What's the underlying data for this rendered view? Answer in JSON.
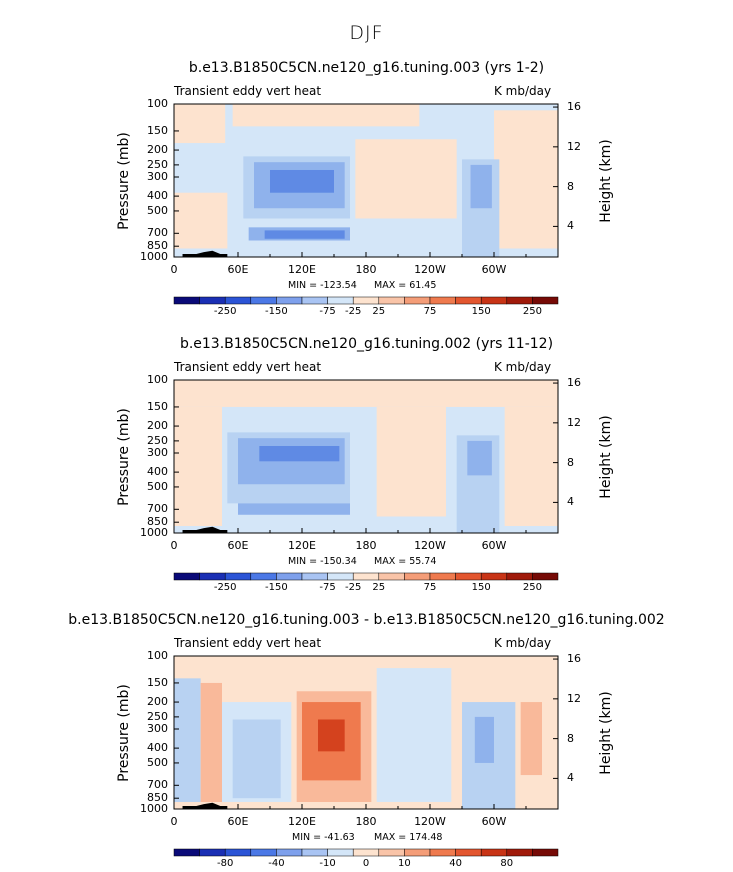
{
  "supertitle": "DJF",
  "colors": {
    "light_blue": "#d4e6f8",
    "mid_blue": "#b8d2f2",
    "blue": "#8fb2ec",
    "deep_blue": "#5f8ae4",
    "light_orange": "#fde3cf",
    "orange": "#f9b99a",
    "red_orange": "#ef7a4e",
    "deep_red": "#d4421e",
    "topo": "#000000"
  },
  "chart_data": [
    {
      "type": "heatmap",
      "title": "b.e13.B1850C5CN.ne120_g16.tuning.003 (yrs 1-2)",
      "left_string": "Transient eddy vert heat",
      "right_string": "K mb/day",
      "ylabel": "Pressure (mb)",
      "ylabel_right": "Height (km)",
      "xticks": [
        "0",
        "60E",
        "120E",
        "180",
        "120W",
        "60W"
      ],
      "yticks": [
        "100",
        "150",
        "200",
        "250",
        "300",
        "400",
        "500",
        "700",
        "850",
        "1000"
      ],
      "yticks_right": [
        "16",
        "12",
        "8",
        "4"
      ],
      "min_label": "MIN = -123.54",
      "max_label": "MAX =  61.45",
      "colorbar_labels": [
        "-250",
        "-150",
        "-75",
        "-25",
        "25",
        "75",
        "150",
        "250"
      ],
      "regions": [
        {
          "lon": [
            0,
            360
          ],
          "p": [
            100,
            1000
          ],
          "level": "light_blue"
        },
        {
          "lon": [
            0,
            48
          ],
          "p": [
            100,
            180
          ],
          "level": "light_orange"
        },
        {
          "lon": [
            55,
            230
          ],
          "p": [
            100,
            140
          ],
          "level": "light_orange"
        },
        {
          "lon": [
            170,
            265
          ],
          "p": [
            170,
            560
          ],
          "level": "light_orange"
        },
        {
          "lon": [
            300,
            360
          ],
          "p": [
            110,
            880
          ],
          "level": "light_orange"
        },
        {
          "lon": [
            0,
            50
          ],
          "p": [
            380,
            880
          ],
          "level": "light_orange"
        },
        {
          "lon": [
            65,
            165
          ],
          "p": [
            220,
            560
          ],
          "level": "mid_blue"
        },
        {
          "lon": [
            75,
            160
          ],
          "p": [
            240,
            480
          ],
          "level": "blue"
        },
        {
          "lon": [
            90,
            150
          ],
          "p": [
            270,
            380
          ],
          "level": "deep_blue"
        },
        {
          "lon": [
            70,
            165
          ],
          "p": [
            640,
            780
          ],
          "level": "blue"
        },
        {
          "lon": [
            85,
            160
          ],
          "p": [
            670,
            760
          ],
          "level": "deep_blue"
        },
        {
          "lon": [
            270,
            305
          ],
          "p": [
            230,
            1000
          ],
          "level": "mid_blue"
        },
        {
          "lon": [
            278,
            298
          ],
          "p": [
            250,
            480
          ],
          "level": "blue"
        }
      ]
    },
    {
      "type": "heatmap",
      "title": "b.e13.B1850C5CN.ne120_g16.tuning.002 (yrs 11-12)",
      "left_string": "Transient eddy vert heat",
      "right_string": "K mb/day",
      "ylabel": "Pressure (mb)",
      "ylabel_right": "Height (km)",
      "xticks": [
        "0",
        "60E",
        "120E",
        "180",
        "120W",
        "60W"
      ],
      "yticks": [
        "100",
        "150",
        "200",
        "250",
        "300",
        "400",
        "500",
        "700",
        "850",
        "1000"
      ],
      "yticks_right": [
        "16",
        "12",
        "8",
        "4"
      ],
      "min_label": "MIN = -150.34",
      "max_label": "MAX =  55.74",
      "colorbar_labels": [
        "-250",
        "-150",
        "-75",
        "-25",
        "25",
        "75",
        "150",
        "250"
      ],
      "regions": [
        {
          "lon": [
            0,
            360
          ],
          "p": [
            100,
            1000
          ],
          "level": "light_blue"
        },
        {
          "lon": [
            0,
            360
          ],
          "p": [
            100,
            150
          ],
          "level": "light_orange"
        },
        {
          "lon": [
            0,
            45
          ],
          "p": [
            150,
            900
          ],
          "level": "light_orange"
        },
        {
          "lon": [
            190,
            255
          ],
          "p": [
            150,
            780
          ],
          "level": "light_orange"
        },
        {
          "lon": [
            310,
            360
          ],
          "p": [
            150,
            900
          ],
          "level": "light_orange"
        },
        {
          "lon": [
            50,
            165
          ],
          "p": [
            220,
            640
          ],
          "level": "mid_blue"
        },
        {
          "lon": [
            60,
            160
          ],
          "p": [
            240,
            480
          ],
          "level": "blue"
        },
        {
          "lon": [
            80,
            155
          ],
          "p": [
            270,
            340
          ],
          "level": "deep_blue"
        },
        {
          "lon": [
            60,
            165
          ],
          "p": [
            640,
            760
          ],
          "level": "blue"
        },
        {
          "lon": [
            265,
            305
          ],
          "p": [
            230,
            1000
          ],
          "level": "mid_blue"
        },
        {
          "lon": [
            275,
            298
          ],
          "p": [
            250,
            420
          ],
          "level": "blue"
        }
      ]
    },
    {
      "type": "heatmap",
      "title": "b.e13.B1850C5CN.ne120_g16.tuning.003 - b.e13.B1850C5CN.ne120_g16.tuning.002",
      "left_string": "Transient eddy vert heat",
      "right_string": "K mb/day",
      "ylabel": "Pressure (mb)",
      "ylabel_right": "Height (km)",
      "xticks": [
        "0",
        "60E",
        "120E",
        "180",
        "120W",
        "60W"
      ],
      "yticks": [
        "100",
        "150",
        "200",
        "250",
        "300",
        "400",
        "500",
        "700",
        "850",
        "1000"
      ],
      "yticks_right": [
        "16",
        "12",
        "8",
        "4"
      ],
      "min_label": "MIN = -41.63",
      "max_label": "MAX = 174.48",
      "colorbar_labels": [
        "-80",
        "-40",
        "-10",
        "0",
        "10",
        "40",
        "80"
      ],
      "regions": [
        {
          "lon": [
            0,
            360
          ],
          "p": [
            100,
            1000
          ],
          "level": "light_orange"
        },
        {
          "lon": [
            0,
            25
          ],
          "p": [
            140,
            900
          ],
          "level": "mid_blue"
        },
        {
          "lon": [
            25,
            45
          ],
          "p": [
            150,
            900
          ],
          "level": "orange"
        },
        {
          "lon": [
            45,
            110
          ],
          "p": [
            200,
            900
          ],
          "level": "light_blue"
        },
        {
          "lon": [
            55,
            100
          ],
          "p": [
            260,
            850
          ],
          "level": "mid_blue"
        },
        {
          "lon": [
            115,
            185
          ],
          "p": [
            170,
            900
          ],
          "level": "orange"
        },
        {
          "lon": [
            120,
            175
          ],
          "p": [
            200,
            650
          ],
          "level": "red_orange"
        },
        {
          "lon": [
            135,
            160
          ],
          "p": [
            260,
            420
          ],
          "level": "deep_red"
        },
        {
          "lon": [
            190,
            260
          ],
          "p": [
            120,
            900
          ],
          "level": "light_blue"
        },
        {
          "lon": [
            270,
            320
          ],
          "p": [
            200,
            1000
          ],
          "level": "mid_blue"
        },
        {
          "lon": [
            282,
            300
          ],
          "p": [
            250,
            500
          ],
          "level": "blue"
        },
        {
          "lon": [
            325,
            345
          ],
          "p": [
            200,
            600
          ],
          "level": "orange"
        }
      ]
    }
  ],
  "colorbar_colors": [
    "#0a0a78",
    "#1a2fb4",
    "#2b54d6",
    "#4b78e6",
    "#7ea0ec",
    "#a9c4f3",
    "#d4e6f8",
    "#fde3cf",
    "#f9c4a8",
    "#f49d78",
    "#ef7a4e",
    "#e3562f",
    "#c83416",
    "#a01a0a",
    "#760a06"
  ]
}
